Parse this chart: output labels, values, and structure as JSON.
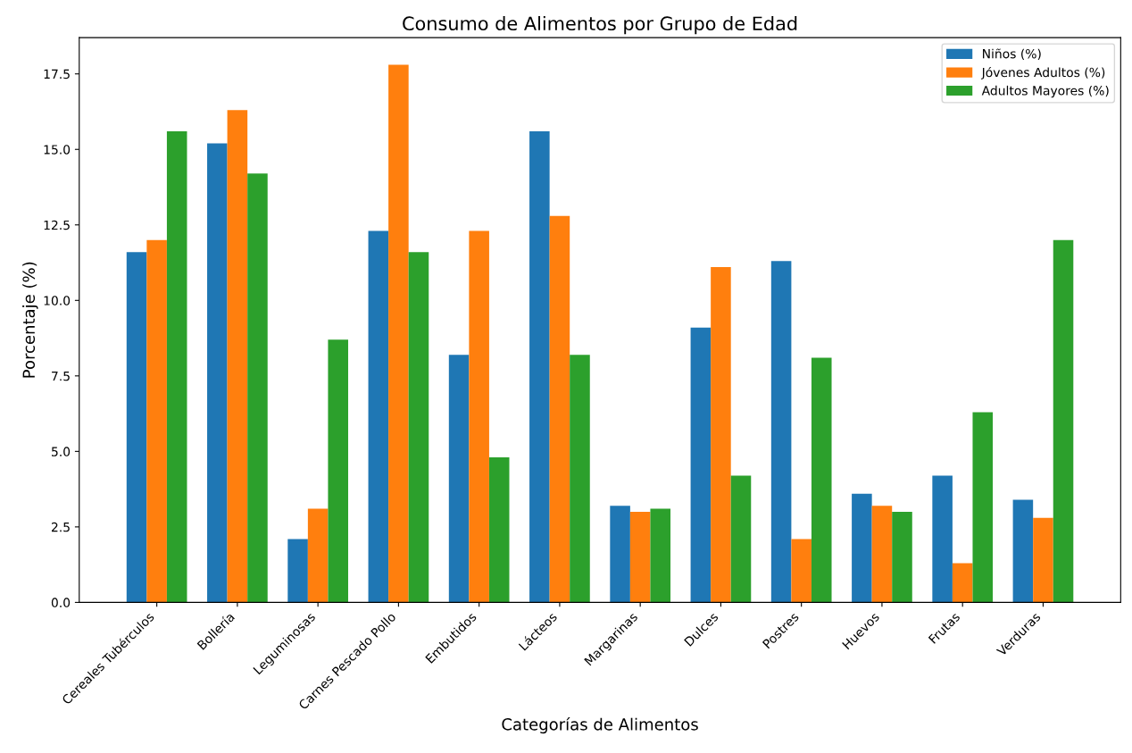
{
  "chart_data": {
    "type": "bar",
    "title": "Consumo de Alimentos por Grupo de Edad",
    "xlabel": "Categorías de Alimentos",
    "ylabel": "Porcentaje (%)",
    "categories": [
      "Cereales Tubérculos",
      "Bollería",
      "Leguminosas",
      "Carnes Pescado Pollo",
      "Embutidos",
      "Lácteos",
      "Margarinas",
      "Dulces",
      "Postres",
      "Huevos",
      "Frutas",
      "Verduras"
    ],
    "series": [
      {
        "name": "Niños (%)",
        "color": "#1f77b4",
        "values": [
          11.6,
          15.2,
          2.1,
          12.3,
          8.2,
          15.6,
          3.2,
          9.1,
          11.3,
          3.6,
          4.2,
          3.4
        ]
      },
      {
        "name": "Jóvenes Adultos (%)",
        "color": "#ff7f0e",
        "values": [
          12.0,
          16.3,
          3.1,
          17.8,
          12.3,
          12.8,
          3.0,
          11.1,
          2.1,
          3.2,
          1.3,
          2.8
        ]
      },
      {
        "name": "Adultos Mayores (%)",
        "color": "#2ca02c",
        "values": [
          15.6,
          14.2,
          8.7,
          11.6,
          4.8,
          8.2,
          3.1,
          4.2,
          8.1,
          3.0,
          6.3,
          12.0
        ]
      }
    ],
    "ylim": [
      0,
      18.7
    ],
    "yticks": [
      {
        "value": 0,
        "label": "0.0"
      },
      2.5,
      {
        "value": 5,
        "label": "5.0"
      },
      7.5,
      {
        "value": 10,
        "label": "10.0"
      },
      12.5,
      {
        "value": 15,
        "label": "15.0"
      },
      17.5
    ],
    "legend": "top right",
    "grid": false
  }
}
